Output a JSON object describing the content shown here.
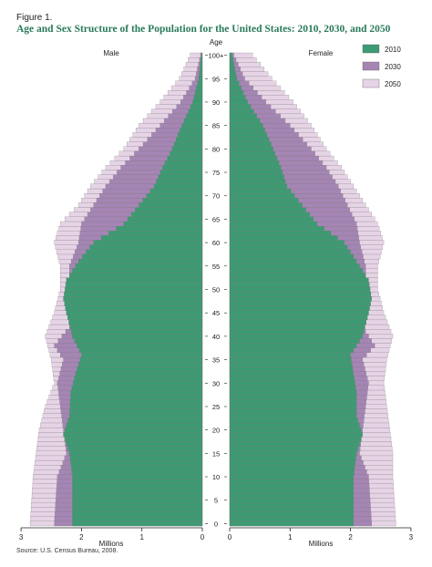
{
  "figure_label": "Figure 1.",
  "title": "Age and Sex Structure of the Population for the United States: 2010, 2030, and 2050",
  "source": "Source: U.S. Census Bureau, 2008.",
  "chart_data": {
    "type": "bar",
    "subtype": "population-pyramid",
    "title": "Age and Sex Structure of the Population for the United States: 2010, 2030, and 2050",
    "panels": {
      "left": "Male",
      "right": "Female"
    },
    "age_axis_label": "Age",
    "age_tick_labels": [
      "0",
      "5",
      "10",
      "15",
      "20",
      "25",
      "30",
      "35",
      "40",
      "45",
      "50",
      "55",
      "60",
      "65",
      "70",
      "75",
      "80",
      "85",
      "90",
      "95",
      "100+"
    ],
    "x_axis_label": "Millions",
    "x_ticks_left": [
      "3",
      "2",
      "1",
      "0"
    ],
    "x_ticks_right": [
      "0",
      "1",
      "2",
      "3"
    ],
    "xlim": [
      0,
      3
    ],
    "legend_position": "top-right",
    "colors": {
      "2010": "#3d9a72",
      "2030": "#a585b4",
      "2050": "#e6d4e6"
    },
    "series": [
      {
        "name": "2010",
        "male_knots": [
          [
            0,
            2.15
          ],
          [
            10,
            2.15
          ],
          [
            15,
            2.2
          ],
          [
            19,
            2.3
          ],
          [
            23,
            2.2
          ],
          [
            28,
            2.18
          ],
          [
            32,
            2.1
          ],
          [
            36,
            2.0
          ],
          [
            40,
            2.15
          ],
          [
            45,
            2.25
          ],
          [
            48,
            2.3
          ],
          [
            52,
            2.25
          ],
          [
            56,
            2.05
          ],
          [
            60,
            1.8
          ],
          [
            64,
            1.3
          ],
          [
            68,
            1.05
          ],
          [
            72,
            0.8
          ],
          [
            76,
            0.66
          ],
          [
            80,
            0.5
          ],
          [
            85,
            0.34
          ],
          [
            90,
            0.16
          ],
          [
            95,
            0.06
          ],
          [
            100,
            0.02
          ]
        ],
        "female_knots": [
          [
            0,
            2.05
          ],
          [
            10,
            2.05
          ],
          [
            15,
            2.1
          ],
          [
            19,
            2.2
          ],
          [
            23,
            2.1
          ],
          [
            28,
            2.1
          ],
          [
            32,
            2.05
          ],
          [
            36,
            2.0
          ],
          [
            40,
            2.2
          ],
          [
            45,
            2.3
          ],
          [
            48,
            2.35
          ],
          [
            52,
            2.3
          ],
          [
            56,
            2.1
          ],
          [
            60,
            1.9
          ],
          [
            64,
            1.45
          ],
          [
            68,
            1.2
          ],
          [
            72,
            0.95
          ],
          [
            76,
            0.85
          ],
          [
            80,
            0.72
          ],
          [
            85,
            0.55
          ],
          [
            90,
            0.3
          ],
          [
            95,
            0.12
          ],
          [
            100,
            0.04
          ]
        ]
      },
      {
        "name": "2030",
        "male_knots": [
          [
            0,
            2.45
          ],
          [
            10,
            2.4
          ],
          [
            15,
            2.25
          ],
          [
            20,
            2.3
          ],
          [
            25,
            2.35
          ],
          [
            30,
            2.4
          ],
          [
            35,
            2.3
          ],
          [
            38,
            2.45
          ],
          [
            42,
            2.2
          ],
          [
            46,
            2.15
          ],
          [
            50,
            2.2
          ],
          [
            55,
            2.2
          ],
          [
            60,
            2.05
          ],
          [
            64,
            2.0
          ],
          [
            68,
            1.8
          ],
          [
            72,
            1.6
          ],
          [
            76,
            1.35
          ],
          [
            80,
            1.05
          ],
          [
            85,
            0.7
          ],
          [
            90,
            0.36
          ],
          [
            95,
            0.12
          ],
          [
            100,
            0.03
          ]
        ],
        "female_knots": [
          [
            0,
            2.35
          ],
          [
            10,
            2.3
          ],
          [
            15,
            2.15
          ],
          [
            20,
            2.2
          ],
          [
            25,
            2.25
          ],
          [
            30,
            2.3
          ],
          [
            35,
            2.2
          ],
          [
            38,
            2.4
          ],
          [
            42,
            2.2
          ],
          [
            46,
            2.15
          ],
          [
            50,
            2.25
          ],
          [
            55,
            2.25
          ],
          [
            60,
            2.15
          ],
          [
            64,
            2.1
          ],
          [
            68,
            1.95
          ],
          [
            72,
            1.8
          ],
          [
            76,
            1.6
          ],
          [
            80,
            1.35
          ],
          [
            85,
            1.0
          ],
          [
            90,
            0.6
          ],
          [
            95,
            0.25
          ],
          [
            100,
            0.07
          ]
        ]
      },
      {
        "name": "2050",
        "male_knots": [
          [
            0,
            2.85
          ],
          [
            10,
            2.8
          ],
          [
            15,
            2.75
          ],
          [
            20,
            2.7
          ],
          [
            25,
            2.6
          ],
          [
            30,
            2.45
          ],
          [
            35,
            2.5
          ],
          [
            40,
            2.6
          ],
          [
            45,
            2.45
          ],
          [
            50,
            2.35
          ],
          [
            55,
            2.35
          ],
          [
            60,
            2.45
          ],
          [
            64,
            2.35
          ],
          [
            68,
            2.05
          ],
          [
            72,
            1.85
          ],
          [
            76,
            1.6
          ],
          [
            80,
            1.3
          ],
          [
            85,
            1.05
          ],
          [
            90,
            0.7
          ],
          [
            95,
            0.38
          ],
          [
            100,
            0.2
          ]
        ],
        "female_knots": [
          [
            0,
            2.75
          ],
          [
            10,
            2.7
          ],
          [
            15,
            2.7
          ],
          [
            20,
            2.65
          ],
          [
            25,
            2.6
          ],
          [
            30,
            2.55
          ],
          [
            35,
            2.6
          ],
          [
            40,
            2.7
          ],
          [
            45,
            2.55
          ],
          [
            50,
            2.45
          ],
          [
            55,
            2.45
          ],
          [
            60,
            2.55
          ],
          [
            64,
            2.45
          ],
          [
            68,
            2.25
          ],
          [
            72,
            2.05
          ],
          [
            76,
            1.85
          ],
          [
            80,
            1.6
          ],
          [
            85,
            1.35
          ],
          [
            90,
            1.05
          ],
          [
            95,
            0.7
          ],
          [
            100,
            0.38
          ]
        ]
      }
    ]
  }
}
